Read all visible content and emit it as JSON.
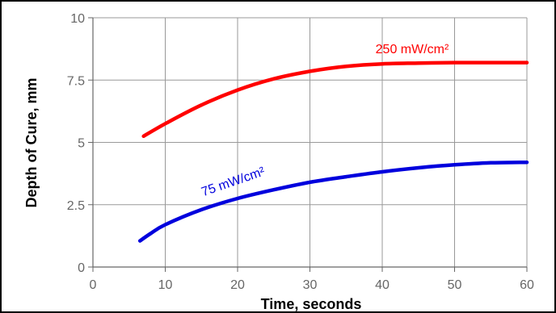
{
  "chart_data": {
    "type": "line",
    "xlabel": "Time, seconds",
    "ylabel": "Depth of Cure, mm",
    "xlim": [
      0,
      60
    ],
    "ylim": [
      0,
      10
    ],
    "x_ticks": [
      "0",
      "10",
      "20",
      "30",
      "40",
      "50",
      "60"
    ],
    "y_ticks": [
      "0",
      "2.5",
      "5",
      "7.5",
      "10"
    ],
    "x_tick_values": [
      0,
      10,
      20,
      30,
      40,
      50,
      60
    ],
    "y_tick_values": [
      0,
      2.5,
      5,
      7.5,
      10
    ],
    "grid": true,
    "series": [
      {
        "name": "250 mW/cm²",
        "color": "#ff0000",
        "x": [
          7,
          10,
          15,
          20,
          25,
          30,
          35,
          40,
          45,
          50,
          55,
          60
        ],
        "y": [
          5.25,
          5.75,
          6.5,
          7.1,
          7.55,
          7.85,
          8.05,
          8.15,
          8.18,
          8.2,
          8.2,
          8.2
        ]
      },
      {
        "name": "75 mW/cm²",
        "color": "#0000dd",
        "x": [
          6.5,
          8,
          10,
          15,
          20,
          25,
          30,
          35,
          40,
          45,
          50,
          55,
          60
        ],
        "y": [
          1.05,
          1.35,
          1.7,
          2.3,
          2.75,
          3.1,
          3.4,
          3.62,
          3.82,
          3.98,
          4.1,
          4.18,
          4.2
        ]
      }
    ]
  }
}
